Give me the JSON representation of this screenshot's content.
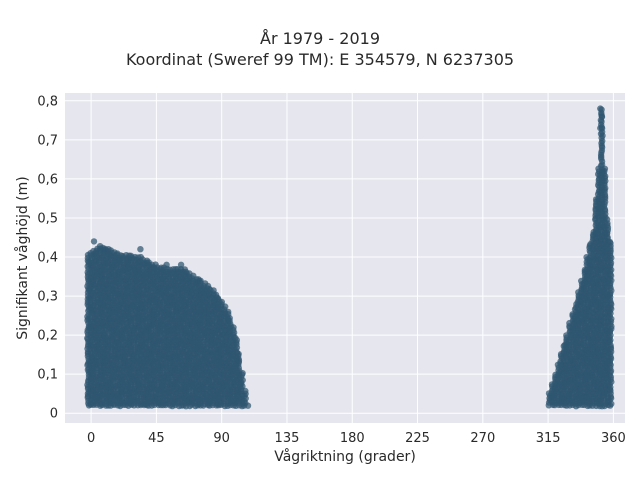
{
  "chart_data": {
    "type": "scatter",
    "title": "År 1979 - 2019",
    "subtitle": "Koordinat (Sweref 99 TM): E 354579, N 6237305",
    "xlabel": "Vågriktning (grader)",
    "ylabel": "Signifikant våghöjd (m)",
    "xlim": [
      -18,
      368
    ],
    "ylim": [
      -0.025,
      0.82
    ],
    "xticks": [
      0,
      45,
      90,
      135,
      180,
      225,
      270,
      315,
      360
    ],
    "xtick_labels": [
      "0",
      "45",
      "90",
      "135",
      "180",
      "225",
      "270",
      "315",
      "360"
    ],
    "yticks": [
      0,
      0.1,
      0.2,
      0.3,
      0.4,
      0.5,
      0.6,
      0.7,
      0.8
    ],
    "ytick_labels": [
      "0",
      "0,1",
      "0,2",
      "0,3",
      "0,4",
      "0,5",
      "0,6",
      "0,7",
      "0,8"
    ],
    "grid": true,
    "marker_color": "#2f5670",
    "background_color": "#e5e6ee",
    "envelope": [
      {
        "x": -2,
        "y": 0.41
      },
      {
        "x": 5,
        "y": 0.43
      },
      {
        "x": 20,
        "y": 0.41
      },
      {
        "x": 35,
        "y": 0.4
      },
      {
        "x": 45,
        "y": 0.38
      },
      {
        "x": 55,
        "y": 0.37
      },
      {
        "x": 65,
        "y": 0.37
      },
      {
        "x": 72,
        "y": 0.35
      },
      {
        "x": 80,
        "y": 0.33
      },
      {
        "x": 88,
        "y": 0.3
      },
      {
        "x": 95,
        "y": 0.26
      },
      {
        "x": 100,
        "y": 0.2
      },
      {
        "x": 103,
        "y": 0.13
      },
      {
        "x": 106,
        "y": 0.06
      },
      {
        "x": 108,
        "y": 0.02
      },
      {
        "x": 315,
        "y": 0.04
      },
      {
        "x": 320,
        "y": 0.1
      },
      {
        "x": 326,
        "y": 0.18
      },
      {
        "x": 333,
        "y": 0.27
      },
      {
        "x": 338,
        "y": 0.34
      },
      {
        "x": 342,
        "y": 0.4
      },
      {
        "x": 346,
        "y": 0.47
      },
      {
        "x": 348,
        "y": 0.55
      },
      {
        "x": 350,
        "y": 0.63
      },
      {
        "x": 351,
        "y": 0.7
      },
      {
        "x": 352,
        "y": 0.78
      },
      {
        "x": 355,
        "y": 0.55
      },
      {
        "x": 357,
        "y": 0.45
      },
      {
        "x": 359,
        "y": 0.44
      }
    ],
    "outliers": [
      {
        "x": 2,
        "y": 0.44
      },
      {
        "x": 12,
        "y": 0.42
      },
      {
        "x": 34,
        "y": 0.42
      },
      {
        "x": 52,
        "y": 0.38
      },
      {
        "x": 62,
        "y": 0.38
      },
      {
        "x": 351,
        "y": 0.78
      },
      {
        "x": 352,
        "y": 0.76
      },
      {
        "x": 351,
        "y": 0.73
      }
    ]
  }
}
